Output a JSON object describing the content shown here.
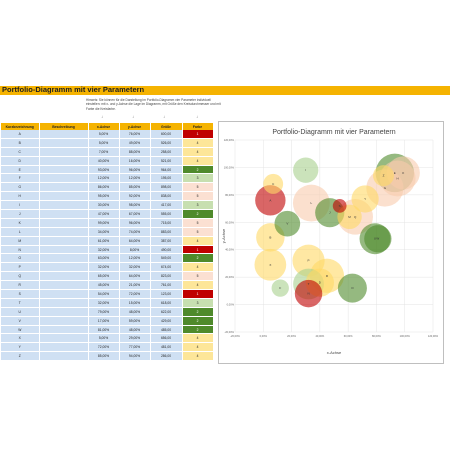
{
  "title": "Portfolio-Diagramm mit vier Parametern",
  "hint": "Hinweis: Sie können für die Darstellung im Portfolio-Diagramm vier Parameter individuell einstellen: mit x- und y-Achse die Lage im Diagramm, mit Größe den Kreisdurchmesser und mit Farbe die Kreisfarbe.",
  "arrows": [
    "↓",
    "↓",
    "↓",
    "↓"
  ],
  "table": {
    "headers": [
      "Kurzbezeichnung",
      "Beschreibung",
      "x-Achse",
      "y-Achse",
      "Größe",
      "Farbe"
    ],
    "rows": [
      {
        "name": "A",
        "desc": "",
        "x": "5,00%",
        "y": "76,00%",
        "size": "600,00",
        "color": "1",
        "c": "red"
      },
      {
        "name": "B",
        "desc": "",
        "x": "5,00%",
        "y": "49,00%",
        "size": "526,00",
        "color": "4",
        "c": "yellow"
      },
      {
        "name": "C",
        "desc": "",
        "x": "7,00%",
        "y": "88,00%",
        "size": "258,00",
        "color": "4",
        "c": "yellow"
      },
      {
        "name": "D",
        "desc": "",
        "x": "40,00%",
        "y": "16,00%",
        "size": "521,00",
        "color": "4",
        "c": "yellow"
      },
      {
        "name": "E",
        "desc": "",
        "x": "93,00%",
        "y": "96,00%",
        "size": "964,00",
        "color": "2",
        "c": "green"
      },
      {
        "name": "F",
        "desc": "",
        "x": "12,00%",
        "y": "12,00%",
        "size": "195,00",
        "color": "3",
        "c": "lightgreen"
      },
      {
        "name": "G",
        "desc": "",
        "x": "86,00%",
        "y": "85,00%",
        "size": "898,00",
        "color": "5",
        "c": "peach"
      },
      {
        "name": "H",
        "desc": "",
        "x": "95,00%",
        "y": "92,00%",
        "size": "838,00",
        "color": "5",
        "c": "peach"
      },
      {
        "name": "I",
        "desc": "",
        "x": "30,00%",
        "y": "98,00%",
        "size": "417,00",
        "color": "3",
        "c": "lightgreen"
      },
      {
        "name": "J",
        "desc": "",
        "x": "47,00%",
        "y": "67,00%",
        "size": "555,00",
        "color": "2",
        "c": "green"
      },
      {
        "name": "K",
        "desc": "",
        "x": "99,00%",
        "y": "96,00%",
        "size": "715,00",
        "color": "5",
        "c": "peach"
      },
      {
        "name": "L",
        "desc": "",
        "x": "34,00%",
        "y": "74,00%",
        "size": "883,00",
        "color": "5",
        "c": "peach"
      },
      {
        "name": "M",
        "desc": "",
        "x": "61,00%",
        "y": "64,00%",
        "size": "387,00",
        "color": "4",
        "c": "yellow"
      },
      {
        "name": "N",
        "desc": "",
        "x": "32,00%",
        "y": "8,00%",
        "size": "490,00",
        "color": "1",
        "c": "red"
      },
      {
        "name": "O",
        "desc": "",
        "x": "63,00%",
        "y": "12,00%",
        "size": "549,00",
        "color": "2",
        "c": "green"
      },
      {
        "name": "P",
        "desc": "",
        "x": "32,00%",
        "y": "32,00%",
        "size": "674,00",
        "color": "4",
        "c": "yellow"
      },
      {
        "name": "Q",
        "desc": "",
        "x": "65,00%",
        "y": "64,00%",
        "size": "823,00",
        "color": "5",
        "c": "peach"
      },
      {
        "name": "R",
        "desc": "",
        "x": "45,00%",
        "y": "21,00%",
        "size": "761,00",
        "color": "4",
        "c": "yellow"
      },
      {
        "name": "S",
        "desc": "",
        "x": "54,00%",
        "y": "72,00%",
        "size": "123,00",
        "color": "1",
        "c": "red"
      },
      {
        "name": "T",
        "desc": "",
        "x": "32,00%",
        "y": "15,00%",
        "size": "618,00",
        "color": "3",
        "c": "lightgreen"
      },
      {
        "name": "U",
        "desc": "",
        "x": "79,00%",
        "y": "48,00%",
        "size": "622,00",
        "color": "2",
        "c": "green"
      },
      {
        "name": "V",
        "desc": "",
        "x": "17,00%",
        "y": "59,00%",
        "size": "429,00",
        "color": "2",
        "c": "green"
      },
      {
        "name": "W",
        "desc": "",
        "x": "81,00%",
        "y": "48,00%",
        "size": "485,00",
        "color": "2",
        "c": "green"
      },
      {
        "name": "X",
        "desc": "",
        "x": "5,00%",
        "y": "29,00%",
        "size": "656,00",
        "color": "4",
        "c": "yellow"
      },
      {
        "name": "Y",
        "desc": "",
        "x": "72,00%",
        "y": "77,00%",
        "size": "481,00",
        "color": "4",
        "c": "yellow"
      },
      {
        "name": "Z",
        "desc": "",
        "x": "85,00%",
        "y": "94,00%",
        "size": "286,00",
        "color": "4",
        "c": "yellow"
      }
    ]
  },
  "chart_data": {
    "type": "scatter",
    "title": "Portfolio-Diagramm mit vier Parametern",
    "xlabel": "x-Achse",
    "ylabel": "y-Achse",
    "xlim": [
      -20,
      120
    ],
    "ylim": [
      -20,
      120
    ],
    "x_ticks": [
      "-20,00%",
      "0,00%",
      "20,00%",
      "40,00%",
      "60,00%",
      "80,00%",
      "100,00%",
      "120,00%"
    ],
    "y_ticks": [
      "-20,00%",
      "0,00%",
      "20,00%",
      "40,00%",
      "60,00%",
      "80,00%",
      "100,00%",
      "120,00%"
    ],
    "grid": true,
    "palette": {
      "1": "#c00000",
      "2": "#4f8a2b",
      "3": "#a9d18e",
      "4": "#ffd966",
      "5": "#f8cbad"
    },
    "points": [
      {
        "label": "A",
        "x": 5,
        "y": 76,
        "size": 600,
        "color": "1"
      },
      {
        "label": "B",
        "x": 5,
        "y": 49,
        "size": 526,
        "color": "4"
      },
      {
        "label": "C",
        "x": 7,
        "y": 88,
        "size": 258,
        "color": "4"
      },
      {
        "label": "D",
        "x": 40,
        "y": 16,
        "size": 521,
        "color": "4"
      },
      {
        "label": "E",
        "x": 93,
        "y": 96,
        "size": 964,
        "color": "2"
      },
      {
        "label": "F",
        "x": 12,
        "y": 12,
        "size": 195,
        "color": "3"
      },
      {
        "label": "G",
        "x": 86,
        "y": 85,
        "size": 898,
        "color": "5"
      },
      {
        "label": "H",
        "x": 95,
        "y": 92,
        "size": 838,
        "color": "5"
      },
      {
        "label": "I",
        "x": 30,
        "y": 98,
        "size": 417,
        "color": "3"
      },
      {
        "label": "J",
        "x": 47,
        "y": 67,
        "size": 555,
        "color": "2"
      },
      {
        "label": "K",
        "x": 99,
        "y": 96,
        "size": 715,
        "color": "5"
      },
      {
        "label": "L",
        "x": 34,
        "y": 74,
        "size": 883,
        "color": "5"
      },
      {
        "label": "M",
        "x": 61,
        "y": 64,
        "size": 387,
        "color": "4"
      },
      {
        "label": "N",
        "x": 32,
        "y": 8,
        "size": 490,
        "color": "1"
      },
      {
        "label": "O",
        "x": 63,
        "y": 12,
        "size": 549,
        "color": "2"
      },
      {
        "label": "P",
        "x": 32,
        "y": 32,
        "size": 674,
        "color": "4"
      },
      {
        "label": "Q",
        "x": 65,
        "y": 64,
        "size": 823,
        "color": "5"
      },
      {
        "label": "R",
        "x": 45,
        "y": 21,
        "size": 761,
        "color": "4"
      },
      {
        "label": "S",
        "x": 54,
        "y": 72,
        "size": 123,
        "color": "1"
      },
      {
        "label": "T",
        "x": 32,
        "y": 15,
        "size": 618,
        "color": "3"
      },
      {
        "label": "U",
        "x": 79,
        "y": 48,
        "size": 622,
        "color": "2"
      },
      {
        "label": "V",
        "x": 17,
        "y": 59,
        "size": 429,
        "color": "2"
      },
      {
        "label": "W",
        "x": 81,
        "y": 48,
        "size": 485,
        "color": "2"
      },
      {
        "label": "X",
        "x": 5,
        "y": 29,
        "size": 656,
        "color": "4"
      },
      {
        "label": "Y",
        "x": 72,
        "y": 77,
        "size": 481,
        "color": "4"
      },
      {
        "label": "Z",
        "x": 85,
        "y": 94,
        "size": 286,
        "color": "4"
      }
    ]
  }
}
